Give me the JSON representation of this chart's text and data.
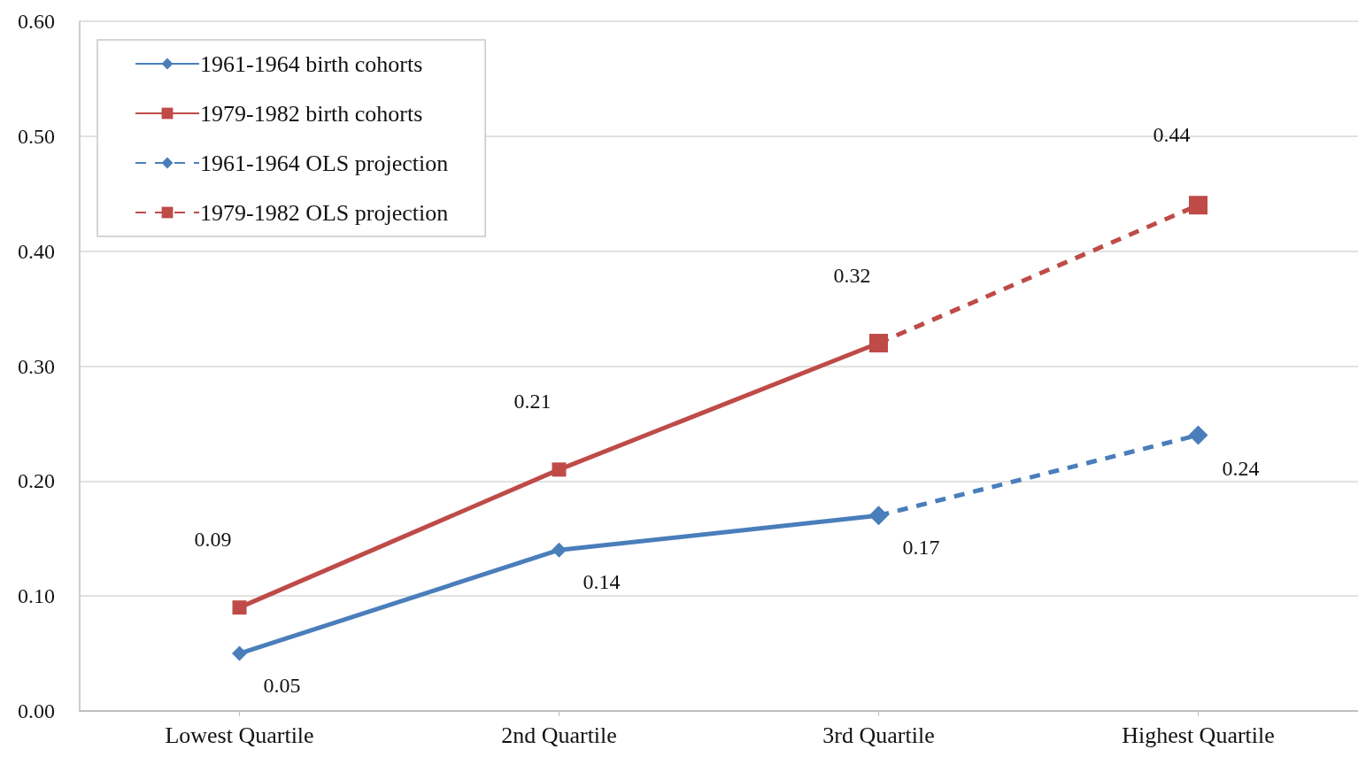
{
  "chart_data": {
    "type": "line",
    "categories": [
      "Lowest Quartile",
      "2nd Quartile",
      "3rd Quartile",
      "Highest Quartile"
    ],
    "series": [
      {
        "name": "1961-1964 birth cohorts",
        "color": "#4a7ebb",
        "marker": "diamond",
        "line_style": "solid",
        "values": [
          0.05,
          0.14,
          0.17,
          null
        ],
        "value_labels": [
          "0.05",
          "0.14",
          "0.17",
          null
        ]
      },
      {
        "name": "1979-1982 birth cohorts",
        "color": "#be4b48",
        "marker": "square",
        "line_style": "solid",
        "values": [
          0.09,
          0.21,
          0.32,
          null
        ],
        "value_labels": [
          "0.09",
          "0.21",
          "0.32",
          null
        ]
      },
      {
        "name": "1961-1964 OLS projection",
        "color": "#4a7ebb",
        "marker": "diamond",
        "line_style": "dashed",
        "values": [
          null,
          null,
          0.17,
          0.24
        ],
        "value_labels": [
          null,
          null,
          null,
          "0.24"
        ]
      },
      {
        "name": "1979-1982 OLS projection",
        "color": "#be4b48",
        "marker": "square",
        "line_style": "dashed",
        "values": [
          null,
          null,
          0.32,
          0.44
        ],
        "value_labels": [
          null,
          null,
          null,
          "0.44"
        ]
      }
    ],
    "ylim": [
      0,
      0.6
    ],
    "yticks": [
      {
        "value": 0,
        "label": "0.00"
      },
      {
        "value": 0.1,
        "label": "0.10"
      },
      {
        "value": 0.2,
        "label": "0.20"
      },
      {
        "value": 0.3,
        "label": "0.30"
      },
      {
        "value": 0.4,
        "label": "0.40"
      },
      {
        "value": 0.5,
        "label": "0.50"
      },
      {
        "value": 0.6,
        "label": "0.60"
      }
    ],
    "grid": "y",
    "legend": "top left"
  }
}
